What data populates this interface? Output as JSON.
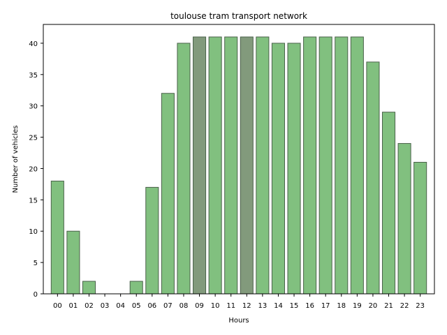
{
  "chart_data": {
    "type": "bar",
    "title": "toulouse tram transport network",
    "xlabel": "Hours",
    "ylabel": "Number of vehicles",
    "categories": [
      "00",
      "01",
      "02",
      "03",
      "04",
      "05",
      "06",
      "07",
      "08",
      "09",
      "10",
      "11",
      "12",
      "13",
      "14",
      "15",
      "16",
      "17",
      "18",
      "19",
      "20",
      "21",
      "22",
      "23"
    ],
    "values": [
      18,
      10,
      2,
      0,
      0,
      2,
      17,
      32,
      40,
      41,
      41,
      41,
      41,
      41,
      40,
      40,
      41,
      41,
      41,
      41,
      37,
      29,
      24,
      21
    ],
    "highlighted": [
      "09",
      "12"
    ],
    "ylim": [
      0,
      43
    ],
    "yticks": [
      0,
      5,
      10,
      15,
      20,
      25,
      30,
      35,
      40
    ],
    "grid": false,
    "colors": {
      "bar": "#81c07f",
      "bar_highlight": "#829a7c",
      "bar_edge": "#4a614a"
    }
  }
}
